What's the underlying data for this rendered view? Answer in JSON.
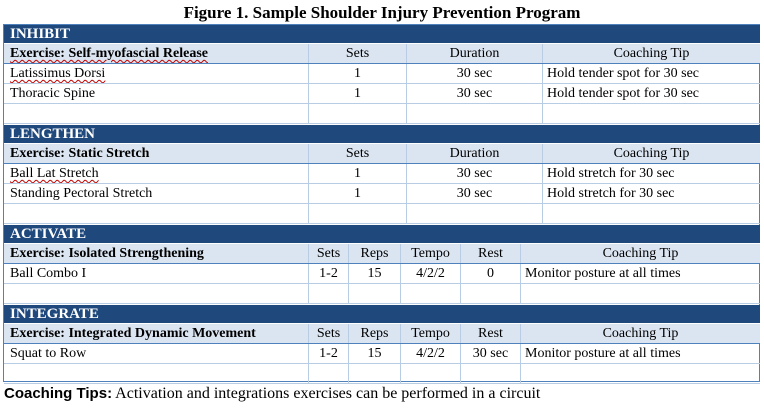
{
  "title": "Figure 1. Sample Shoulder Injury Prevention Program",
  "sections": [
    {
      "name": "INHIBIT",
      "header": [
        "Exercise: Self-myofascial Release",
        "Sets",
        "Duration",
        "Coaching Tip"
      ],
      "rows": [
        [
          "Latissimus Dorsi",
          "1",
          "30 sec",
          "Hold tender spot for 30 sec"
        ],
        [
          "Thoracic Spine",
          "1",
          "30 sec",
          "Hold tender spot for 30 sec"
        ],
        [
          "",
          "",
          "",
          ""
        ]
      ]
    },
    {
      "name": "LENGTHEN",
      "header": [
        "Exercise: Static Stretch",
        "Sets",
        "Duration",
        "Coaching Tip"
      ],
      "rows": [
        [
          "Ball Lat Stretch",
          "1",
          "30 sec",
          "Hold stretch for 30 sec"
        ],
        [
          "Standing Pectoral Stretch",
          "1",
          "30 sec",
          "Hold stretch for 30 sec"
        ],
        [
          "",
          "",
          "",
          ""
        ]
      ]
    },
    {
      "name": "ACTIVATE",
      "header": [
        "Exercise: Isolated Strengthening",
        "Sets",
        "Reps",
        "Tempo",
        "Rest",
        "Coaching Tip"
      ],
      "rows": [
        [
          "Ball Combo I",
          "1-2",
          "15",
          "4/2/2",
          "0",
          "Monitor posture at all times"
        ],
        [
          "",
          "",
          "",
          "",
          "",
          ""
        ]
      ]
    },
    {
      "name": "INTEGRATE",
      "header": [
        "Exercise: Integrated Dynamic Movement",
        "Sets",
        "Reps",
        "Tempo",
        "Rest",
        "Coaching Tip"
      ],
      "rows": [
        [
          "Squat to Row",
          "1-2",
          "15",
          "4/2/2",
          "30 sec",
          "Monitor posture at all times"
        ],
        [
          "",
          "",
          "",
          "",
          "",
          ""
        ]
      ]
    }
  ],
  "footer": {
    "label": "Coaching Tips:",
    "text": " Activation and integrations exercises can be performed in a circuit"
  }
}
